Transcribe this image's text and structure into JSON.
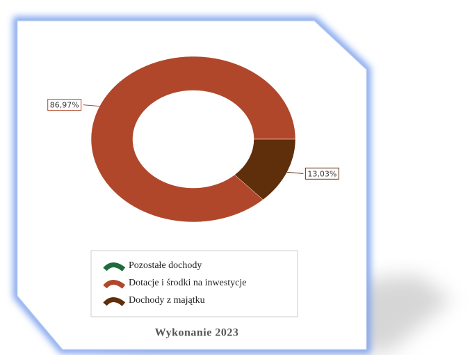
{
  "chart_data": {
    "type": "donut",
    "title": "Wykonanie 2023",
    "categories": [
      "Pozostałe dochody",
      "Dotacje i środki na inwestycje",
      "Dochody z majątku"
    ],
    "values": [
      0,
      86.97,
      13.03
    ],
    "value_labels": [
      null,
      "86,97%",
      "13,03%"
    ],
    "colors": [
      "#1f6b3b",
      "#b0472b",
      "#5f2f0b"
    ],
    "legend": "bottom"
  }
}
